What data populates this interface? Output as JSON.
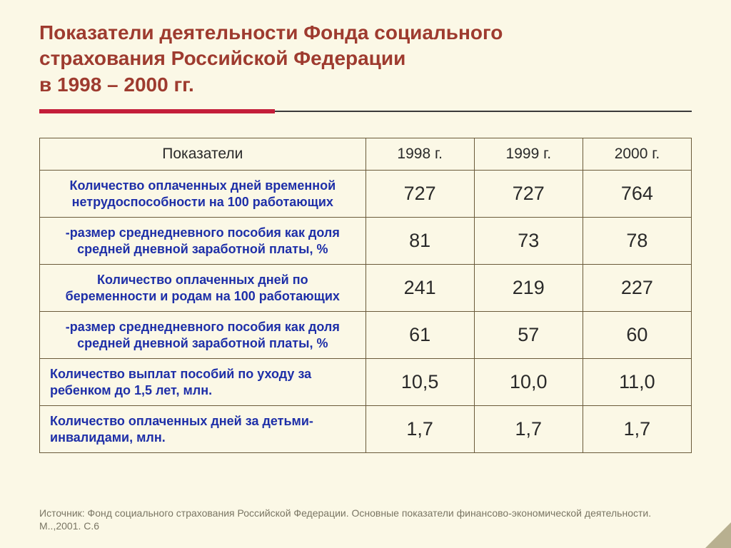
{
  "colors": {
    "slide_bg": "#fbf8e6",
    "title_color": "#9e3b2f",
    "rule_thin": "#3a3a3a",
    "rule_thick": "#c41e3a",
    "table_border": "#6a5a3a",
    "header_text": "#2a2a2a",
    "indicator_text": "#1e2fa8",
    "value_text": "#2a2a2a",
    "footer_text": "#7a7664",
    "corner_light": "#e8e3c8",
    "corner_dark": "#b8b090"
  },
  "title_lines": [
    "Показатели деятельности Фонда социального",
    "страхования Российской Федерации",
    "в 1998 – 2000 гг."
  ],
  "table": {
    "header": [
      "Показатели",
      "1998 г.",
      "1999 г.",
      "2000 г."
    ],
    "rows": [
      {
        "indicator": "Количество оплаченных дней временной нетрудоспособности на 100 работающих",
        "align": "center",
        "values": [
          "727",
          "727",
          "764"
        ]
      },
      {
        "indicator": "-размер среднедневного пособия как доля средней дневной заработной платы, %",
        "align": "center",
        "values": [
          "81",
          "73",
          "78"
        ]
      },
      {
        "indicator": "Количество оплаченных дней по беременности и родам на 100 работающих",
        "align": "center",
        "values": [
          "241",
          "219",
          "227"
        ]
      },
      {
        "indicator": "-размер среднедневного пособия как доля средней дневной заработной платы, %",
        "align": "center",
        "values": [
          "61",
          "57",
          "60"
        ]
      },
      {
        "indicator": "Количество выплат пособий по уходу за ребенком до 1,5 лет, млн.",
        "align": "left",
        "values": [
          "10,5",
          "10,0",
          "11,0"
        ]
      },
      {
        "indicator": "Количество оплаченных дней за детьми-инвалидами, млн.",
        "align": "left",
        "values": [
          "1,7",
          "1,7",
          "1,7"
        ]
      }
    ]
  },
  "footer": "Источник: Фонд социального страхования Российской Федерации. Основные показатели финансово-экономической деятельности. М..,2001. С.6"
}
